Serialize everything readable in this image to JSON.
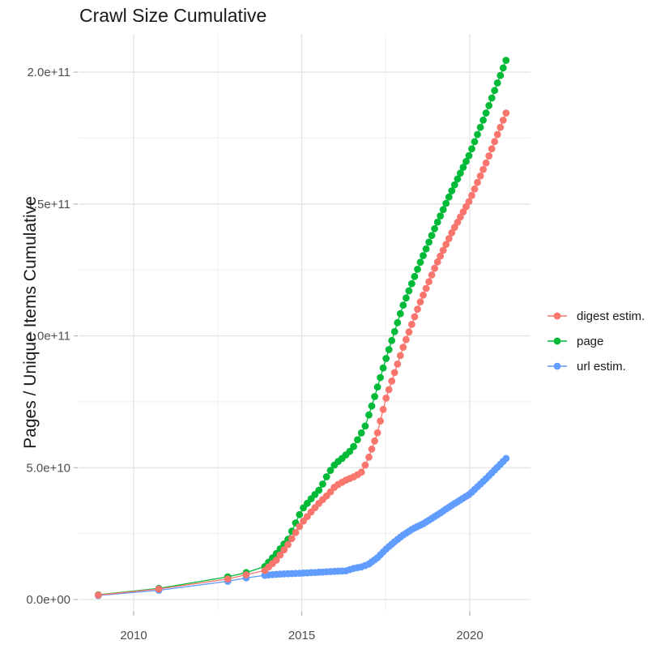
{
  "title": "Crawl Size Cumulative",
  "axes": {
    "y_title": "Pages / Unique Items Cumulative",
    "y_ticks": [
      {
        "label": "0.0e+00",
        "value_billions": 0
      },
      {
        "label": "5.0e+10",
        "value_billions": 50
      },
      {
        "label": "1.0e+11",
        "value_billions": 100
      },
      {
        "label": "1.5e+11",
        "value_billions": 150
      },
      {
        "label": "2.0e+11",
        "value_billions": 200
      }
    ],
    "y_minor_billions": [
      25,
      75,
      125,
      175
    ],
    "x_ticks": [
      {
        "label": "2010",
        "year": 2010
      },
      {
        "label": "2015",
        "year": 2015
      },
      {
        "label": "2020",
        "year": 2020
      }
    ],
    "x_minor_years": [
      2012.5,
      2017.5
    ]
  },
  "colors": {
    "grid_major": "#e3e3e3",
    "grid_minor": "#efefef",
    "tick_mark": "#b3b3b3",
    "tick_text": "#4d4d4d",
    "background": "#ffffff"
  },
  "chart_data": {
    "type": "scatter",
    "title": "Crawl Size Cumulative",
    "xlabel": "",
    "ylabel": "Pages / Unique Items Cumulative",
    "x_unit": "year",
    "y_unit": "items (stored as billions, i.e. value x 1e9)",
    "xlim": [
      2008.4,
      2021.8
    ],
    "ylim_billions": [
      -4,
      214.5
    ],
    "grid": true,
    "legend_position": "right",
    "marker_radius_px": 4.4,
    "sampling": {
      "early_years": [
        2008.95,
        2010.75,
        2012.8,
        2013.35
      ],
      "phases": [
        {
          "start": 2013.9,
          "end": 2016.95,
          "step": 0.115
        },
        {
          "start": 2017.0,
          "end": 2021.08,
          "step": 0.085
        }
      ]
    },
    "draw_order": [
      1,
      2,
      0
    ],
    "series": [
      {
        "name": "digest estim.",
        "color": "#F8766D",
        "points": [
          [
            2008.95,
            1.7
          ],
          [
            2010.75,
            4.0
          ],
          [
            2012.8,
            7.8
          ],
          [
            2013.35,
            9.4
          ],
          [
            2013.9,
            11
          ],
          [
            2014.25,
            15
          ],
          [
            2014.6,
            21
          ],
          [
            2015.0,
            29
          ],
          [
            2015.3,
            33.5
          ],
          [
            2015.55,
            37
          ],
          [
            2015.8,
            40
          ],
          [
            2016.0,
            43
          ],
          [
            2016.3,
            45.2
          ],
          [
            2016.6,
            46.8
          ],
          [
            2016.8,
            48.5
          ],
          [
            2017.0,
            54
          ],
          [
            2017.25,
            63
          ],
          [
            2017.5,
            76
          ],
          [
            2018.0,
            95
          ],
          [
            2018.5,
            112
          ],
          [
            2019.0,
            127
          ],
          [
            2019.5,
            140
          ],
          [
            2020.0,
            151.5
          ],
          [
            2020.5,
            166
          ],
          [
            2021.08,
            184.5
          ]
        ]
      },
      {
        "name": "page",
        "color": "#00BA38",
        "points": [
          [
            2008.95,
            1.8
          ],
          [
            2010.75,
            4.2
          ],
          [
            2012.8,
            8.6
          ],
          [
            2013.35,
            10.2
          ],
          [
            2013.9,
            12.5
          ],
          [
            2014.25,
            17.5
          ],
          [
            2014.6,
            23
          ],
          [
            2015.0,
            34
          ],
          [
            2015.3,
            38.5
          ],
          [
            2015.55,
            42
          ],
          [
            2015.8,
            48
          ],
          [
            2016.0,
            51.5
          ],
          [
            2016.2,
            53.5
          ],
          [
            2016.5,
            57
          ],
          [
            2016.9,
            66
          ],
          [
            2017.1,
            74
          ],
          [
            2017.5,
            91
          ],
          [
            2018.0,
            111
          ],
          [
            2018.5,
            127
          ],
          [
            2019.0,
            142
          ],
          [
            2019.5,
            156
          ],
          [
            2020.0,
            169
          ],
          [
            2020.5,
            185
          ],
          [
            2021.08,
            204.5
          ]
        ]
      },
      {
        "name": "url estim.",
        "color": "#619CFF",
        "points": [
          [
            2008.95,
            1.5
          ],
          [
            2010.75,
            3.5
          ],
          [
            2012.8,
            6.9
          ],
          [
            2013.35,
            8.2
          ],
          [
            2013.9,
            9.2
          ],
          [
            2014.3,
            9.6
          ],
          [
            2015.0,
            10.0
          ],
          [
            2015.6,
            10.4
          ],
          [
            2016.0,
            10.7
          ],
          [
            2016.35,
            10.9
          ],
          [
            2016.5,
            11.7
          ],
          [
            2016.8,
            12.4
          ],
          [
            2017.0,
            13.5
          ],
          [
            2017.25,
            15.8
          ],
          [
            2017.5,
            19.0
          ],
          [
            2017.75,
            21.8
          ],
          [
            2018.0,
            24.3
          ],
          [
            2018.3,
            26.8
          ],
          [
            2018.6,
            28.6
          ],
          [
            2019.0,
            31.8
          ],
          [
            2019.5,
            36.0
          ],
          [
            2020.0,
            40.0
          ],
          [
            2020.5,
            46.0
          ],
          [
            2021.08,
            53.5
          ]
        ]
      }
    ]
  }
}
